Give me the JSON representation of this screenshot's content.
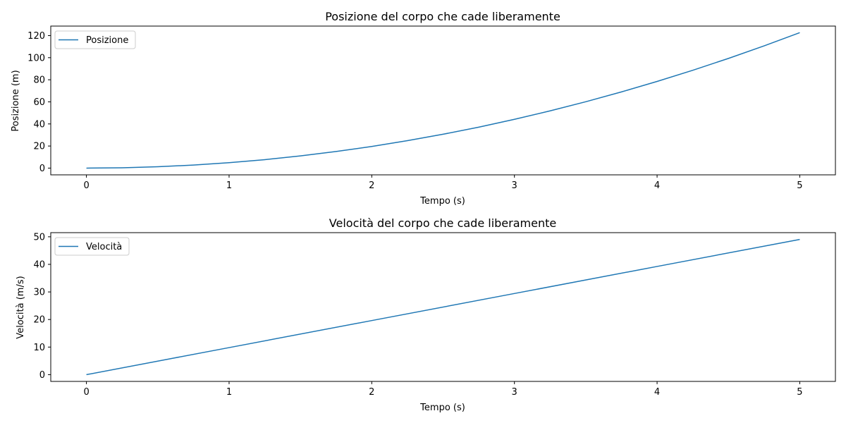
{
  "chart_data": [
    {
      "type": "line",
      "title": "Posizione del corpo che cade liberamente",
      "xlabel": "Tempo (s)",
      "ylabel": "Posizione (m)",
      "xlim": [
        -0.25,
        5.25
      ],
      "ylim": [
        -6.1,
        128.6
      ],
      "xticks": [
        0,
        1,
        2,
        3,
        4,
        5
      ],
      "yticks": [
        0,
        20,
        40,
        60,
        80,
        100,
        120
      ],
      "grid": false,
      "legend": "upper-left",
      "color": "#1f77b4",
      "series": [
        {
          "name": "Posizione",
          "x": [
            0,
            0.25,
            0.5,
            0.75,
            1,
            1.25,
            1.5,
            1.75,
            2,
            2.25,
            2.5,
            2.75,
            3,
            3.25,
            3.5,
            3.75,
            4,
            4.25,
            4.5,
            4.75,
            5
          ],
          "y": [
            0,
            0.31,
            1.23,
            2.76,
            4.91,
            7.66,
            11.03,
            15.02,
            19.62,
            24.83,
            30.66,
            37.09,
            44.15,
            51.81,
            60.09,
            68.98,
            78.48,
            88.6,
            99.32,
            110.66,
            122.63
          ]
        }
      ]
    },
    {
      "type": "line",
      "title": "Velocità del corpo che cade liberamente",
      "xlabel": "Tempo (s)",
      "ylabel": "Velocità (m/s)",
      "xlim": [
        -0.25,
        5.25
      ],
      "ylim": [
        -2.45,
        51.5
      ],
      "xticks": [
        0,
        1,
        2,
        3,
        4,
        5
      ],
      "yticks": [
        0,
        10,
        20,
        30,
        40,
        50
      ],
      "grid": false,
      "legend": "upper-left",
      "color": "#1f77b4",
      "series": [
        {
          "name": "Velocità",
          "x": [
            0,
            1,
            2,
            3,
            4,
            5
          ],
          "y": [
            0,
            9.81,
            19.62,
            29.43,
            39.24,
            49.05
          ]
        }
      ]
    }
  ]
}
